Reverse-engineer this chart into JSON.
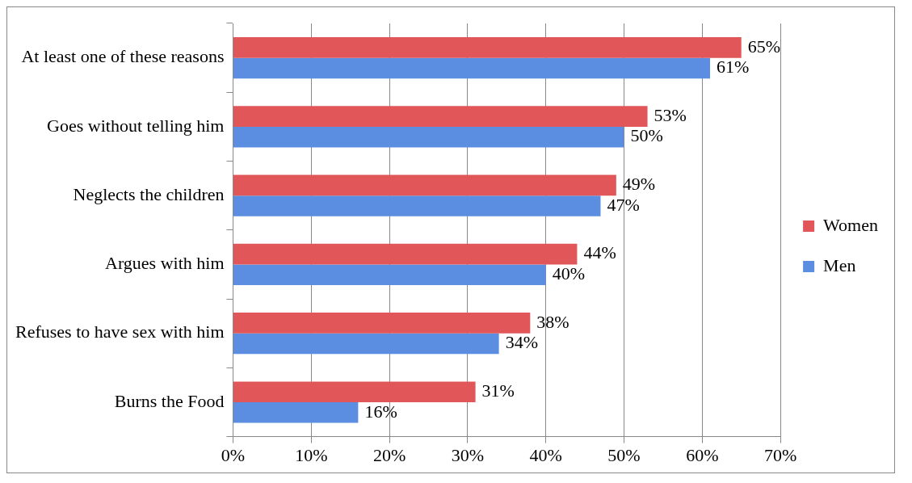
{
  "chart_data": {
    "type": "bar",
    "orientation": "horizontal",
    "categories": [
      "At least one of these reasons",
      "Goes without telling him",
      "Neglects the children",
      "Argues with him",
      "Refuses to have sex with him",
      "Burns the Food"
    ],
    "series": [
      {
        "name": "Women",
        "color": "#e15759",
        "values": [
          65,
          53,
          49,
          44,
          38,
          31
        ],
        "value_labels": [
          "65%",
          "53%",
          "49%",
          "44%",
          "38%",
          "31%"
        ]
      },
      {
        "name": "Men",
        "color": "#5b8ee0",
        "values": [
          61,
          50,
          47,
          40,
          34,
          16
        ],
        "value_labels": [
          "61%",
          "50%",
          "47%",
          "40%",
          "34%",
          "16%"
        ]
      }
    ],
    "xlim": [
      0,
      70
    ],
    "xticks": [
      {
        "value": 0,
        "label": "0%"
      },
      {
        "value": 10,
        "label": "10%"
      },
      {
        "value": 20,
        "label": "20%"
      },
      {
        "value": 30,
        "label": "30%"
      },
      {
        "value": 40,
        "label": "40%"
      },
      {
        "value": 50,
        "label": "50%"
      },
      {
        "value": 60,
        "label": "60%"
      },
      {
        "value": 70,
        "label": "70%"
      }
    ],
    "grid": "x",
    "legend": "right"
  }
}
